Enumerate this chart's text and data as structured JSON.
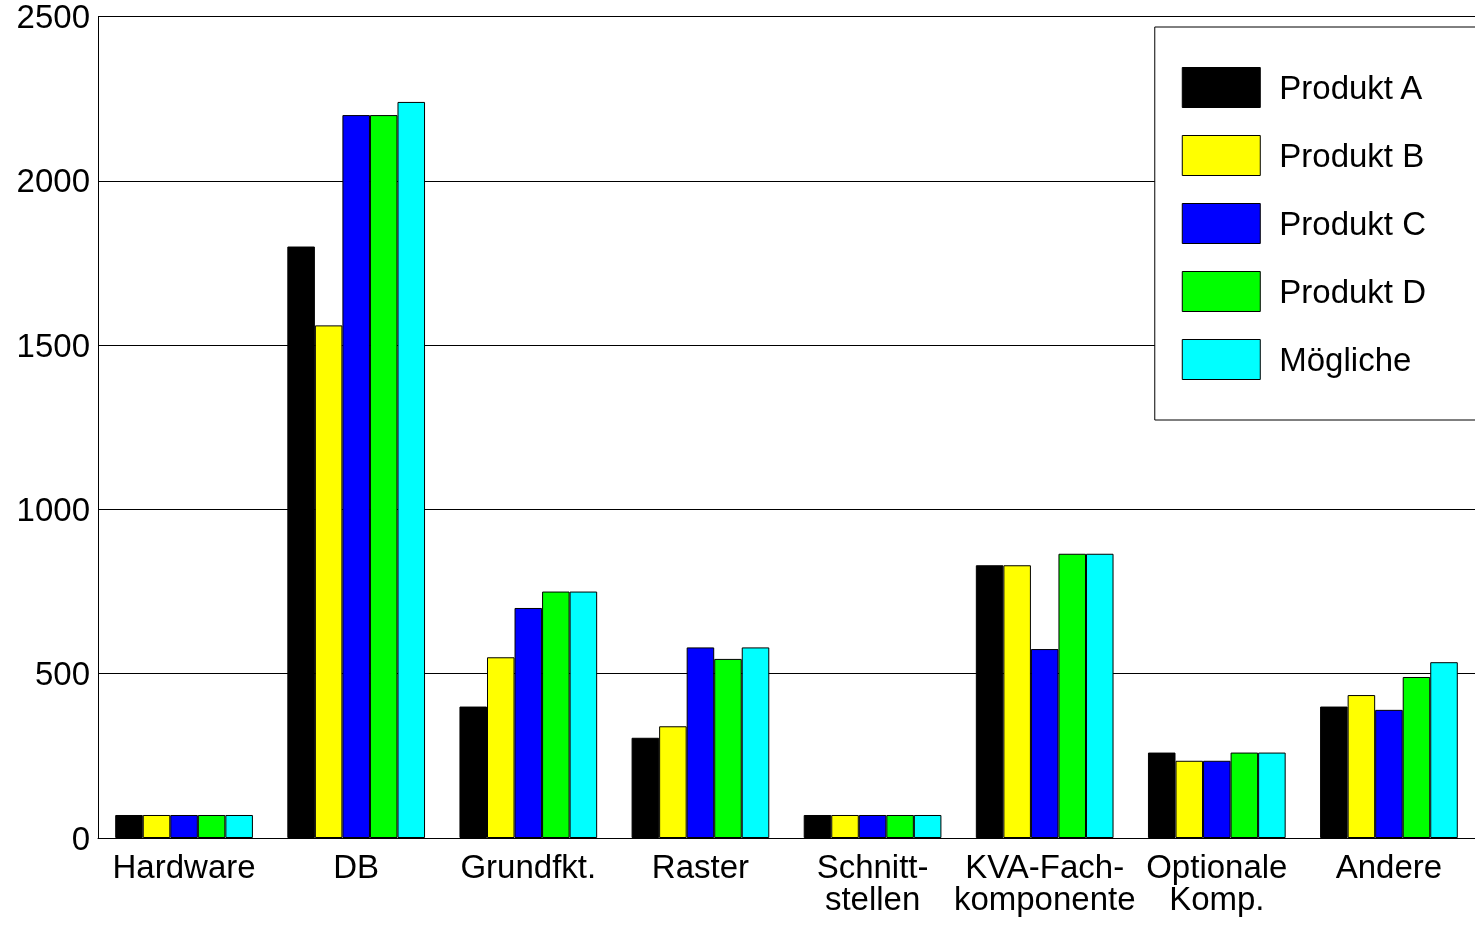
{
  "chart_data": {
    "type": "bar",
    "categories": [
      "Hardware",
      "DB",
      "Grundfkt.",
      "Raster",
      "Schnitt-\nstellen",
      "KVA-Fach-\nkomponente",
      "Optionale\nKomp.",
      "Andere"
    ],
    "series": [
      {
        "name": "Produkt A",
        "color": "#000000",
        "values": [
          70,
          1800,
          400,
          305,
          70,
          830,
          260,
          400
        ]
      },
      {
        "name": "Produkt B",
        "color": "#ffff00",
        "values": [
          70,
          1560,
          550,
          340,
          70,
          830,
          235,
          435
        ]
      },
      {
        "name": "Produkt C",
        "color": "#0000ff",
        "values": [
          70,
          2200,
          700,
          580,
          70,
          575,
          235,
          390
        ]
      },
      {
        "name": "Produkt D",
        "color": "#00ff00",
        "values": [
          70,
          2200,
          750,
          545,
          70,
          865,
          260,
          490
        ]
      },
      {
        "name": "Mögliche",
        "color": "#00ffff",
        "values": [
          70,
          2240,
          750,
          580,
          70,
          865,
          260,
          535
        ]
      }
    ],
    "ylim": [
      0,
      2500
    ],
    "yticks": [
      0,
      500,
      1000,
      1500,
      2000,
      2500
    ],
    "grid": "y",
    "legend": "top right"
  }
}
